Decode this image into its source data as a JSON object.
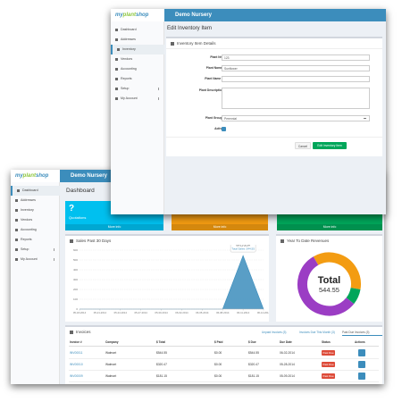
{
  "dashboard_window": {
    "logo": {
      "pre": "my",
      "mid": "plant",
      "post": "shop"
    },
    "app_name": "Demo Nursery",
    "sidebar": [
      "Dashboard",
      "Addresses",
      "Inventory",
      "Vendors",
      "Accounting",
      "Reports",
      "Setup",
      "My Account"
    ],
    "page_title": "Dashboard",
    "stat_boxes": [
      {
        "value": "?",
        "label": "Quotations",
        "link": "More info",
        "color": "#00c0ef"
      },
      {
        "link": "More info",
        "color": "#f39c12"
      },
      {
        "link": "More info",
        "color": "#00a65a"
      }
    ],
    "sales_chart": {
      "title": "Sales Past 30 Days",
      "x": [
        "05-18-2014",
        "05-21-2014",
        "05-24-2014",
        "05-27-2014",
        "05-30-2014",
        "06-02-2014",
        "06-05-2014",
        "06-08-2014",
        "06-11-2014",
        "06-14-2014"
      ],
      "values": [
        0,
        0,
        0,
        0,
        0,
        0,
        0,
        0,
        544.55,
        0
      ],
      "ylim": [
        0,
        600
      ],
      "yticks": [
        0,
        100,
        200,
        300,
        400,
        500,
        600
      ],
      "color": "#3c8dbc",
      "tooltip": {
        "date": "06-11-2014",
        "text": "Total Sales: 544.55"
      }
    },
    "revenue_chart": {
      "title": "Year To Date Revenues",
      "center_label": "Total",
      "center_value": "544.55",
      "segments": [
        {
          "value": 36,
          "color": "#f39c12"
        },
        {
          "value": 8,
          "color": "#00a65a"
        },
        {
          "value": 56,
          "color": "#9b3dc4"
        }
      ]
    },
    "invoices": {
      "title": "Invoices",
      "tabs": [
        "Unpaid Invoices (3)",
        "Invoices Due This Month (3)",
        "Past Due Invoices (3)"
      ],
      "columns": [
        "Invoice #",
        "Company",
        "$ Total",
        "$ Paid",
        "$ Due",
        "Due Date",
        "Status",
        "Actions"
      ],
      "rows": [
        [
          "INV00011",
          "Walmart",
          "$544.55",
          "$0.00",
          "$544.55",
          "06-02-2014",
          "Past Due"
        ],
        [
          "INV00010",
          "Walmart",
          "$320.47",
          "$0.00",
          "$320.47",
          "05-28-2014",
          "Past Due"
        ],
        [
          "INV00009",
          "Walmart",
          "$181.15",
          "$0.00",
          "$181.15",
          "05-09-2014",
          "Past Due"
        ]
      ]
    }
  },
  "edit_window": {
    "logo": {
      "pre": "my",
      "mid": "plant",
      "post": "shop"
    },
    "app_name": "Demo Nursery",
    "sidebar": [
      "Dashboard",
      "Addresses",
      "Inventory",
      "Vendors",
      "Accounting",
      "Reports",
      "Setup",
      "My Account"
    ],
    "page_title": "Edit Inventory Item",
    "form": {
      "title": "Inventory Item Details",
      "fields": [
        {
          "label": "Plant Nr.*",
          "value": "123"
        },
        {
          "label": "Plant Name*",
          "value": "Sunflower"
        },
        {
          "label": "Plant Name 2"
        },
        {
          "label": "Plant Description"
        },
        {
          "label": "Plant Group*",
          "value": "Perennial"
        },
        {
          "label": "Active"
        }
      ],
      "buttons": [
        "Cancel",
        "Edit Inventory Item"
      ]
    }
  }
}
